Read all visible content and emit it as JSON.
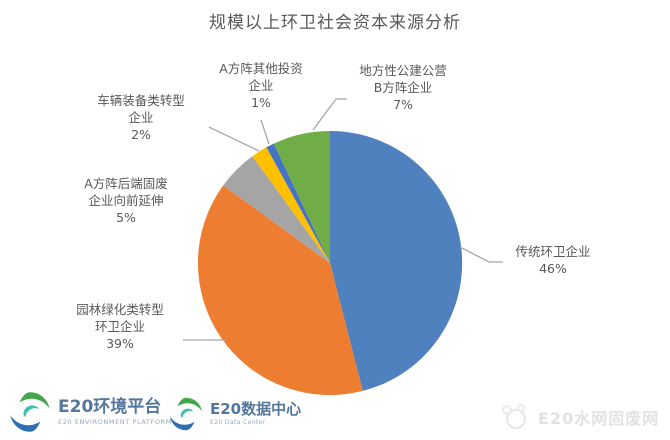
{
  "chart_data": {
    "type": "pie",
    "title": "规模以上环卫社会资本来源分析",
    "start_angle_deg": 0,
    "direction": "clockwise",
    "legend_position": "none",
    "leader_line_color": "#A6A6A6",
    "slices": [
      {
        "label": "传统环卫企业",
        "pct": 46,
        "color": "#4E81BD",
        "label_lines": [
          "传统环卫企业",
          "46%"
        ]
      },
      {
        "label": "园林绿化类转型环卫企业",
        "pct": 39,
        "color": "#ED7D31",
        "label_lines": [
          "园林绿化类转型",
          "环卫企业",
          "39%"
        ]
      },
      {
        "label": "A方阵后端固废企业向前延伸",
        "pct": 5,
        "color": "#A5A5A5",
        "label_lines": [
          "A方阵后端固废",
          "企业向前延伸",
          "5%"
        ]
      },
      {
        "label": "车辆装备类转型企业",
        "pct": 2,
        "color": "#FFC000",
        "label_lines": [
          "车辆装备类转型",
          "企业",
          "2%"
        ]
      },
      {
        "label": "A方阵其他投资企业",
        "pct": 1,
        "color": "#4472C4",
        "label_lines": [
          "A方阵其他投资",
          "企业",
          "1%"
        ]
      },
      {
        "label": "地方性公建公营B方阵企业",
        "pct": 7,
        "color": "#70AD47",
        "label_lines": [
          "地方性公建公营",
          "B方阵企业",
          "7%"
        ]
      }
    ]
  },
  "footer": {
    "logo1": {
      "title": "E20环境平台",
      "subtitle": "E20 ENVIRONMENT PLATFORM"
    },
    "logo2": {
      "title": "E20数据中心",
      "subtitle": "E20 Data Center"
    },
    "watermark": "E20水网固废网"
  },
  "colors": {
    "title_text": "#595959",
    "label_text": "#595959",
    "logo_blue": "#54779B",
    "logo_green": "#44A648",
    "logo_swirl_blue": "#2E6FB0",
    "watermark_gray": "#E2E2E2"
  }
}
